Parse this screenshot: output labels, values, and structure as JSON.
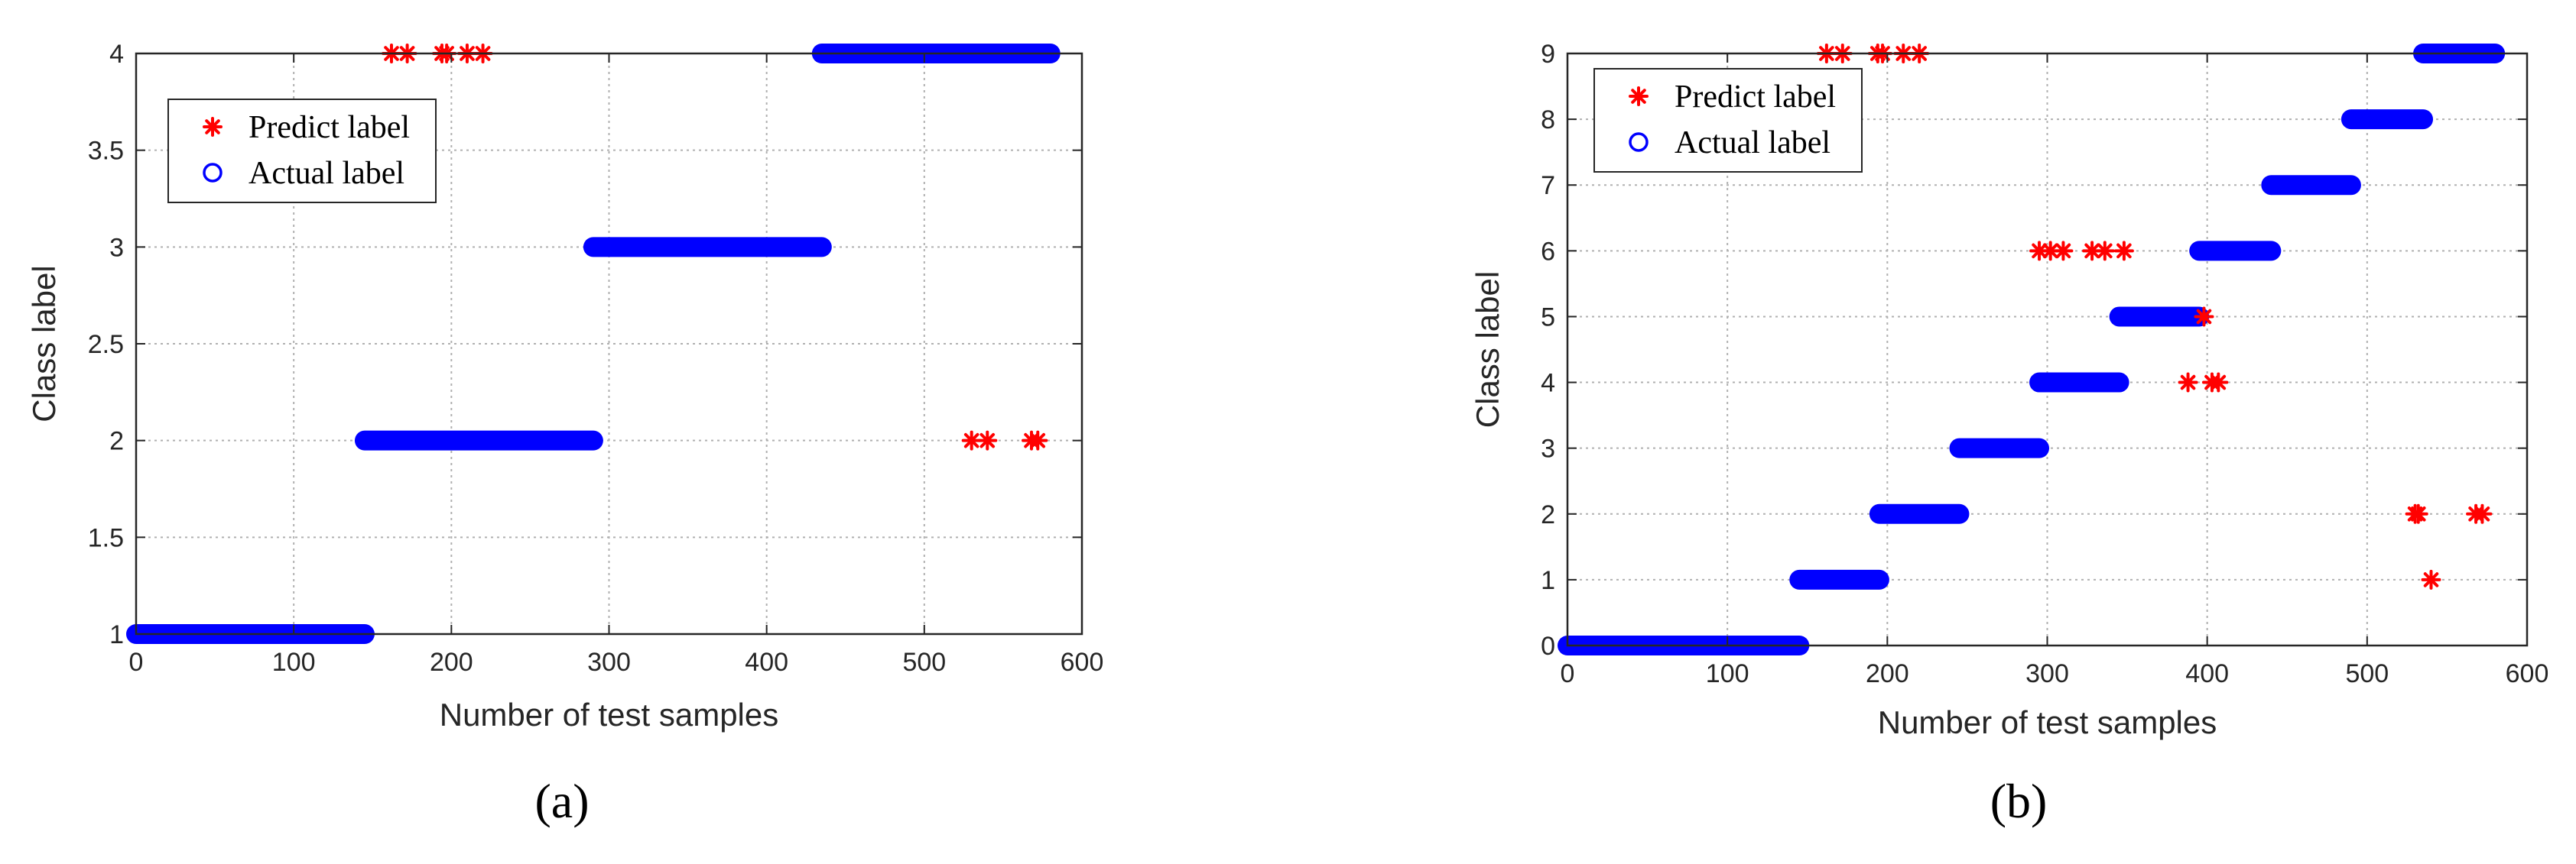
{
  "colors": {
    "predict": "#ff0000",
    "actual": "#0000ff",
    "grid": "#b0b0b0",
    "axis": "#262626"
  },
  "chart_data": [
    {
      "type": "scatter",
      "panel_label": "(a)",
      "xlabel": "Number of test samples",
      "ylabel": "Class label",
      "xlim": [
        0,
        600
      ],
      "ylim": [
        1,
        4
      ],
      "xticks": [
        0,
        100,
        200,
        300,
        400,
        500,
        600
      ],
      "yticks": [
        1,
        1.5,
        2,
        2.5,
        3,
        3.5,
        4
      ],
      "ytick_labels": [
        "1",
        "1.5",
        "2",
        "2.5",
        "3",
        "3.5",
        "4"
      ],
      "grid": true,
      "legend_position": "top-left",
      "legend": {
        "predict": "Predict label",
        "actual": "Actual label"
      },
      "actual_label_segments": [
        {
          "x_start": 0,
          "x_end": 145,
          "class": 1
        },
        {
          "x_start": 145,
          "x_end": 290,
          "class": 2
        },
        {
          "x_start": 290,
          "x_end": 435,
          "class": 3
        },
        {
          "x_start": 435,
          "x_end": 580,
          "class": 4
        }
      ],
      "predict_label_points": [
        {
          "x": 162,
          "y": 4
        },
        {
          "x": 172,
          "y": 4
        },
        {
          "x": 194,
          "y": 4
        },
        {
          "x": 197,
          "y": 4
        },
        {
          "x": 210,
          "y": 4
        },
        {
          "x": 220,
          "y": 4
        },
        {
          "x": 530,
          "y": 2
        },
        {
          "x": 540,
          "y": 2
        },
        {
          "x": 568,
          "y": 2
        },
        {
          "x": 572,
          "y": 2
        }
      ]
    },
    {
      "type": "scatter",
      "panel_label": "(b)",
      "xlabel": "Number of test samples",
      "ylabel": "Class label",
      "xlim": [
        0,
        600
      ],
      "ylim": [
        0,
        9
      ],
      "xticks": [
        0,
        100,
        200,
        300,
        400,
        500,
        600
      ],
      "yticks": [
        0,
        1,
        2,
        3,
        4,
        5,
        6,
        7,
        8,
        9
      ],
      "ytick_labels": [
        "0",
        "1",
        "2",
        "3",
        "4",
        "5",
        "6",
        "7",
        "8",
        "9"
      ],
      "grid": true,
      "legend_position": "top-left",
      "legend": {
        "predict": "Predict label",
        "actual": "Actual label"
      },
      "actual_label_segments": [
        {
          "x_start": 0,
          "x_end": 145,
          "class": 0
        },
        {
          "x_start": 145,
          "x_end": 195,
          "class": 1
        },
        {
          "x_start": 195,
          "x_end": 245,
          "class": 2
        },
        {
          "x_start": 245,
          "x_end": 295,
          "class": 3
        },
        {
          "x_start": 295,
          "x_end": 345,
          "class": 4
        },
        {
          "x_start": 345,
          "x_end": 395,
          "class": 5
        },
        {
          "x_start": 395,
          "x_end": 440,
          "class": 6
        },
        {
          "x_start": 440,
          "x_end": 490,
          "class": 7
        },
        {
          "x_start": 490,
          "x_end": 535,
          "class": 8
        },
        {
          "x_start": 535,
          "x_end": 580,
          "class": 9
        }
      ],
      "predict_label_points": [
        {
          "x": 162,
          "y": 9
        },
        {
          "x": 172,
          "y": 9
        },
        {
          "x": 194,
          "y": 9
        },
        {
          "x": 197,
          "y": 9
        },
        {
          "x": 210,
          "y": 9
        },
        {
          "x": 220,
          "y": 9
        },
        {
          "x": 295,
          "y": 6
        },
        {
          "x": 302,
          "y": 6
        },
        {
          "x": 310,
          "y": 6
        },
        {
          "x": 328,
          "y": 6
        },
        {
          "x": 336,
          "y": 6
        },
        {
          "x": 348,
          "y": 6
        },
        {
          "x": 398,
          "y": 5
        },
        {
          "x": 388,
          "y": 4
        },
        {
          "x": 403,
          "y": 4
        },
        {
          "x": 407,
          "y": 4
        },
        {
          "x": 530,
          "y": 2
        },
        {
          "x": 532,
          "y": 2
        },
        {
          "x": 568,
          "y": 2
        },
        {
          "x": 572,
          "y": 2
        },
        {
          "x": 540,
          "y": 1
        }
      ]
    }
  ]
}
